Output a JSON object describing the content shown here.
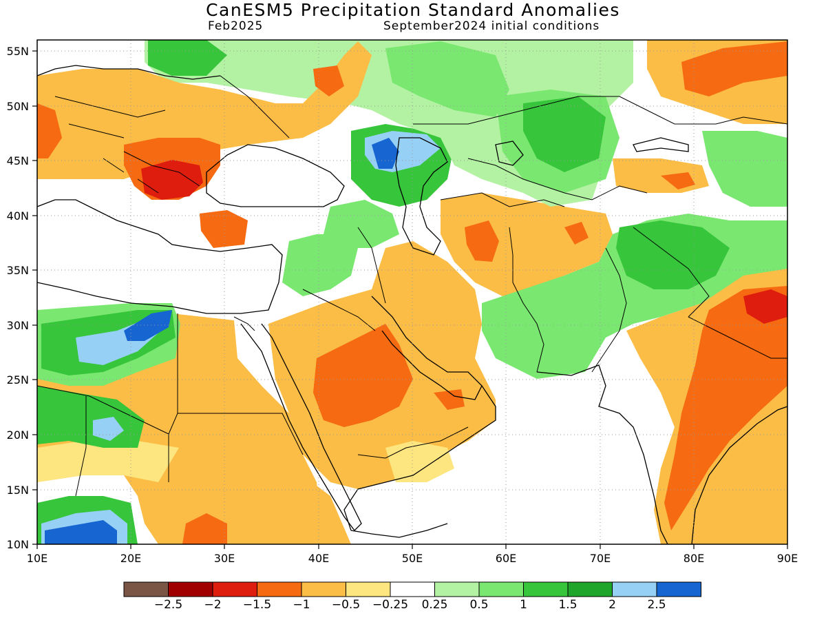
{
  "header": {
    "title": "CanESM5 Precipitation Standard Anomalies",
    "valid_month": "Feb2025",
    "init": "September2024 initial conditions"
  },
  "map": {
    "lon_range": [
      10,
      90
    ],
    "lat_range": [
      10,
      56
    ],
    "x_ticks": [
      "10E",
      "20E",
      "30E",
      "40E",
      "50E",
      "60E",
      "70E",
      "80E",
      "90E"
    ],
    "y_ticks": [
      "10N",
      "15N",
      "20N",
      "25N",
      "30N",
      "35N",
      "40N",
      "45N",
      "50N",
      "55N"
    ],
    "grid": "dotted"
  },
  "legend": {
    "colors": [
      "#7a5546",
      "#a00000",
      "#de1d0f",
      "#f66a12",
      "#fbbd45",
      "#fde680",
      "#ffffff",
      "#b3f2a3",
      "#7ae870",
      "#37c53b",
      "#1fa62a",
      "#96d0f5",
      "#1665d1"
    ],
    "labels": [
      "-2.5",
      "-2",
      "-1.5",
      "-1",
      "-0.5",
      "-0.25",
      "0.25",
      "0.5",
      "1",
      "1.5",
      "2",
      "2.5"
    ]
  }
}
